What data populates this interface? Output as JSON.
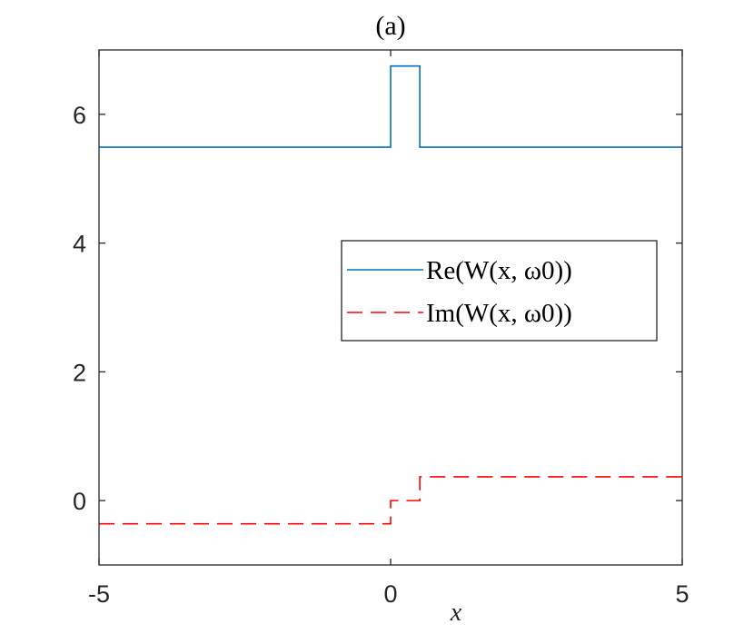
{
  "chart_data": {
    "type": "line",
    "title": "(a)",
    "xlabel": "x",
    "ylabel": "",
    "xlim": [
      -5,
      5
    ],
    "ylim": [
      -1,
      7
    ],
    "xticks": [
      -5,
      0,
      5
    ],
    "xtick_labels": [
      "-5",
      "0",
      "5"
    ],
    "yticks": [
      0,
      2,
      4,
      6
    ],
    "ytick_labels": [
      "0",
      "2",
      "4",
      "6"
    ],
    "grid": false,
    "legend_position": "right-middle",
    "series": [
      {
        "name": "Re(W(x, ω0))",
        "line_style": "solid",
        "color": "#0072BD",
        "x": [
          -5,
          0,
          0,
          0.5,
          0.5,
          5
        ],
        "y": [
          5.49,
          5.49,
          6.75,
          6.75,
          5.49,
          5.49
        ]
      },
      {
        "name": "Im(W(x, ω0))",
        "line_style": "dashed",
        "color": "#FF0000",
        "x": [
          -5,
          0,
          0,
          0.5,
          0.5,
          5
        ],
        "y": [
          -0.36,
          -0.36,
          0,
          0,
          0.37,
          0.37
        ]
      }
    ]
  }
}
